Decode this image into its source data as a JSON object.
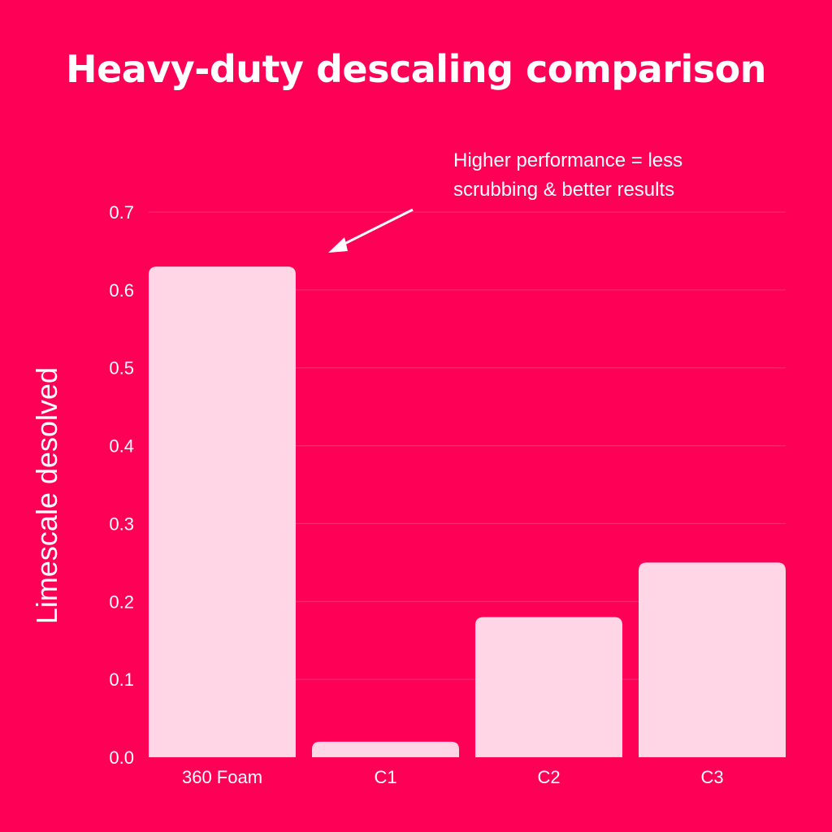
{
  "chart_data": {
    "type": "bar",
    "title": "Heavy-duty descaling comparison",
    "xlabel": "",
    "ylabel": "Limescale desolved",
    "categories": [
      "360 Foam",
      "C1",
      "C2",
      "C3"
    ],
    "values": [
      0.63,
      0.02,
      0.18,
      0.25
    ],
    "ylim": [
      0,
      0.7
    ],
    "yticks": [
      "0.0",
      "0.1",
      "0.2",
      "0.3",
      "0.4",
      "0.5",
      "0.6",
      "0.7"
    ],
    "grid": true,
    "annotation": {
      "line1": "Higher performance = less",
      "line2": "scrubbing & better results"
    },
    "colors": {
      "background": "#FF0057",
      "bar": "#FFD6E5",
      "grid": "#FF2D73",
      "text": "#FFFFFF"
    }
  }
}
